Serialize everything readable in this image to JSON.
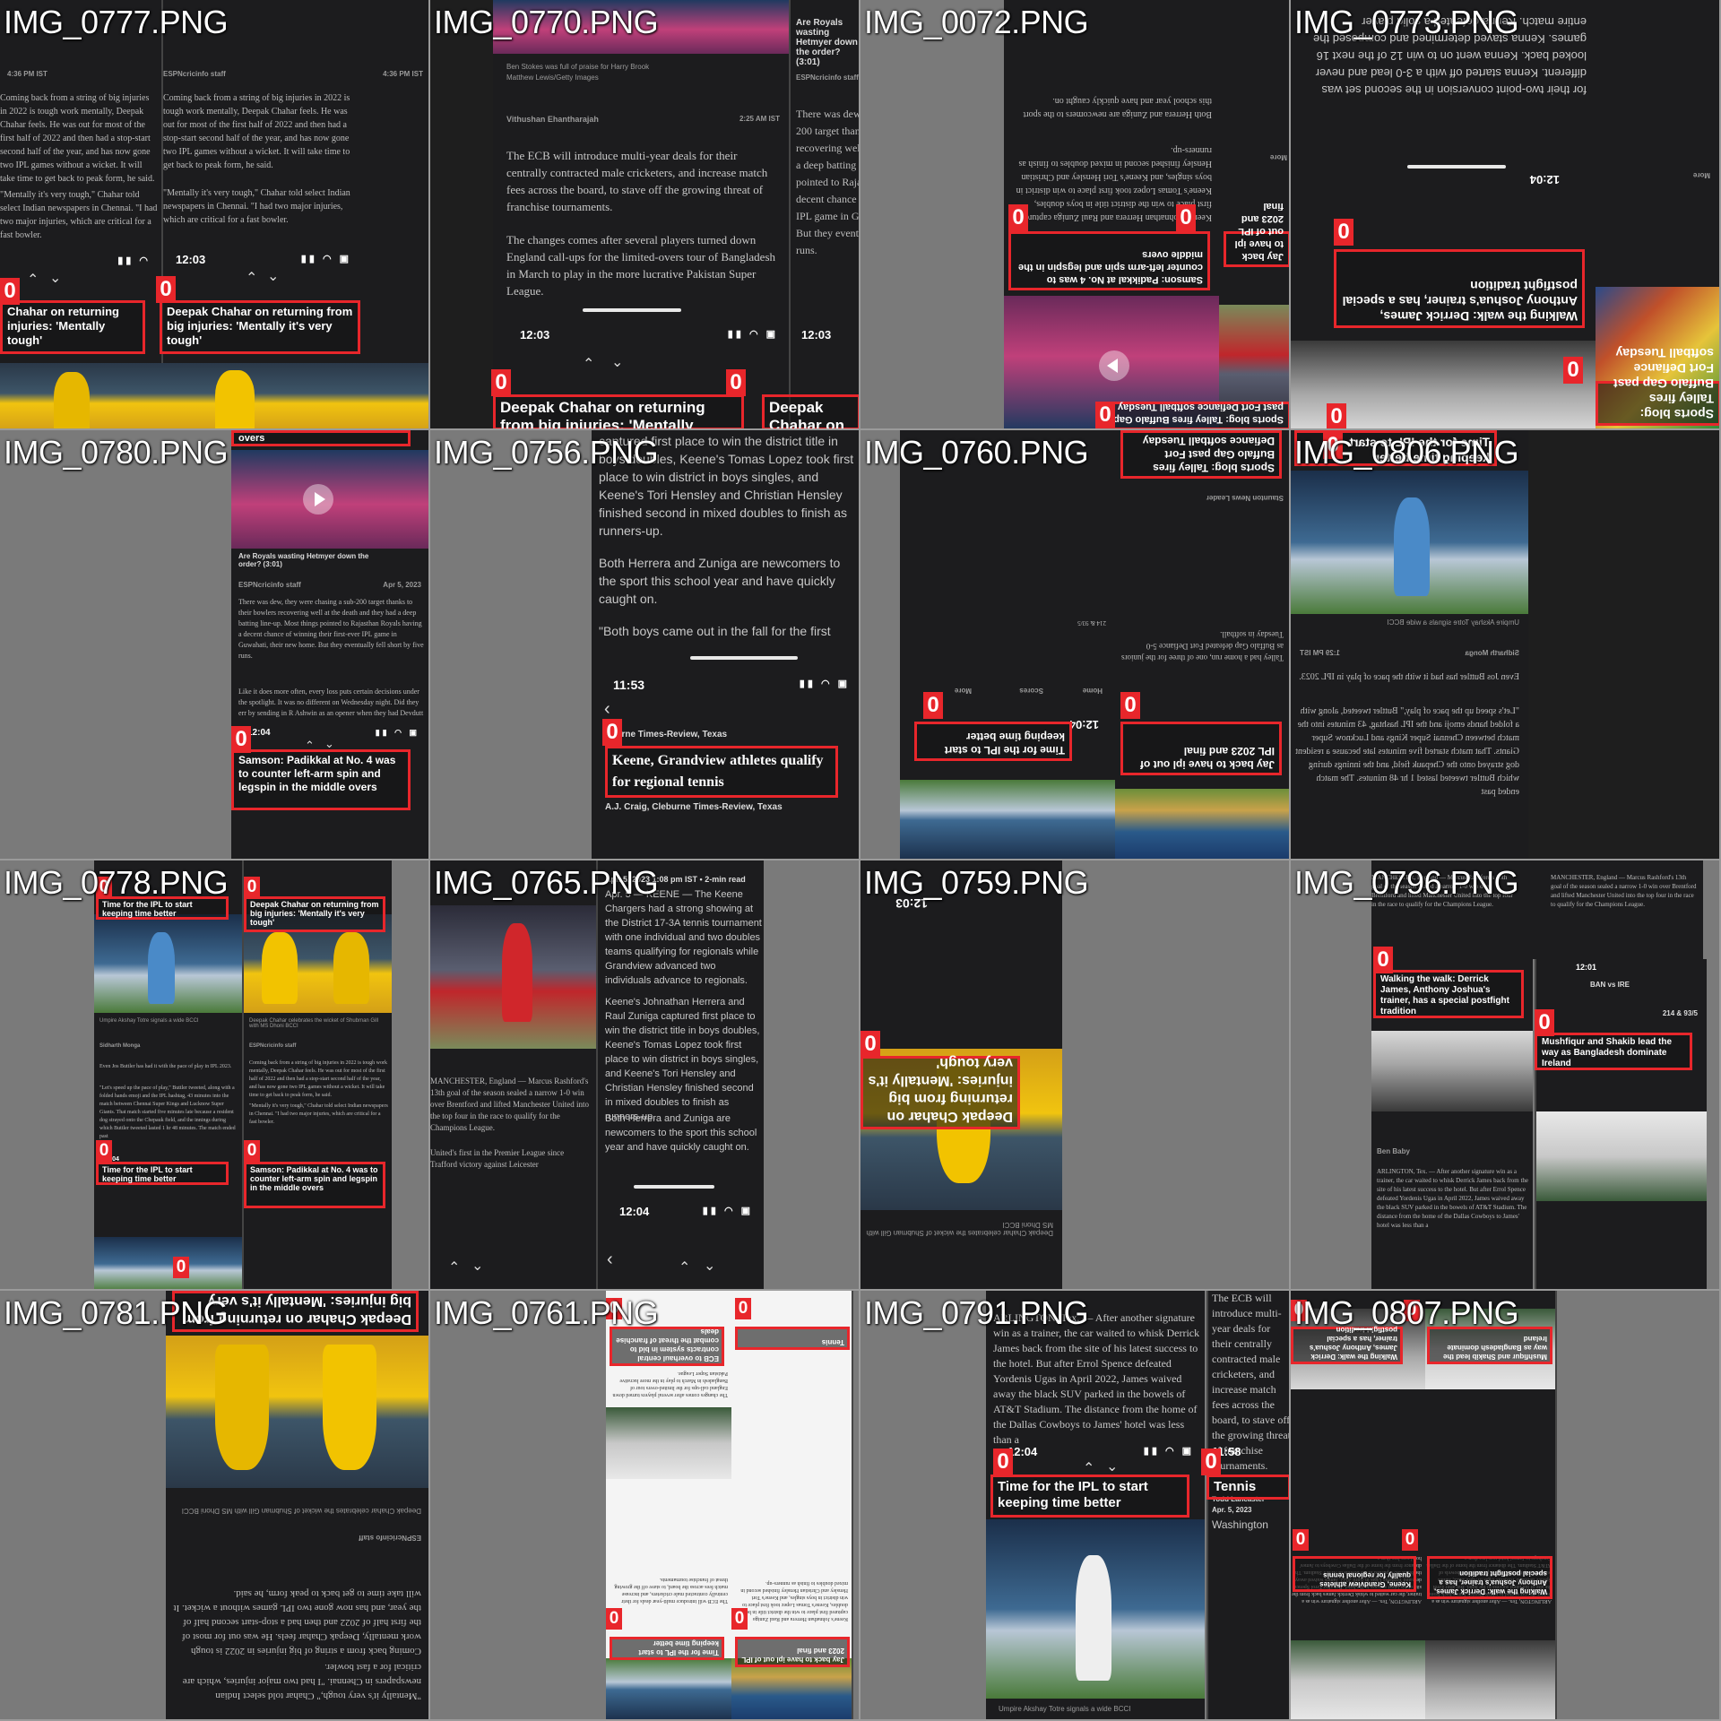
{
  "tiles": [
    {
      "label": "IMG_0777.PNG"
    },
    {
      "label": "IMG_0770.PNG"
    },
    {
      "label": "IMG_0072.PNG"
    },
    {
      "label": "IMG_0773.PNG"
    },
    {
      "label": "IMG_0780.PNG"
    },
    {
      "label": "IMG_0756.PNG"
    },
    {
      "label": "IMG_0760.PNG"
    },
    {
      "label": "IMG_0806.PNG"
    },
    {
      "label": "IMG_0778.PNG"
    },
    {
      "label": "IMG_0765.PNG"
    },
    {
      "label": "IMG_0759.PNG"
    },
    {
      "label": "IMG_0796.PNG"
    },
    {
      "label": "IMG_0781.PNG"
    },
    {
      "label": "IMG_0761.PNG"
    },
    {
      "label": "IMG_0791.PNG"
    },
    {
      "label": "IMG_0807.PNG"
    }
  ],
  "badge": "0",
  "times": {
    "t1203": "12:03",
    "t1204": "12:04",
    "t1153": "11:53",
    "t1158": "11:58",
    "t1201": "12:01"
  },
  "battery": "82",
  "headlines": {
    "chahar_short": "Chahar on returning injuries: 'Mentally tough'",
    "chahar": "Deepak Chahar on returning from big injuries: 'Mentally it's very tough'",
    "chahar_cut": "Deepak Chahar on returning from big injuries: 'Mentally",
    "samson": "Samson: Padikkal at No. 4 was to counter left-arm spin and legspin in the middle overs",
    "derrick": "Walking the walk: Derrick James, Anthony Joshua's trainer, has a special postfight tradition",
    "ipl_time": "Time for the IPL to start keeping time better",
    "keene": "Keene, Grandview athletes qualify for regional tennis",
    "mushfiqur": "Mushfiqur and Shakib lead the way as Bangladesh dominate Ireland",
    "ecb": "ECB to overhaul central contracts system in bid to combat the threat of franchise deals",
    "softball": "Sports blog: Talley fires Buffalo Gap past Fort Defiance softball Tuesday",
    "back_ipl": "Jay back to have ipl out of IPL 2023 and final",
    "royals_q": "Are Royals wasting Hetmyer down the order? (3:01)",
    "tennis": "Tennis",
    "overs": "overs"
  },
  "bylines": {
    "stokes": "Ben Stokes was full of praise for Harry Brook",
    "getty": "Matthew Lewis/Getty Images",
    "vithushan": "Vithushan Ehantharajah",
    "espn": "ESPNcricinfo staff",
    "newsleader": "Staunton News Leader",
    "dsunday": "Sidharth Monga",
    "umpire_cap": "Umpire Akshay Totre signals a wide BCCI",
    "chahar_cap": "Deepak Chahar celebrates the wicket of Shubman Gill with MS Dhoni BCCI",
    "times_review": "Bourne Times-Review, Texas",
    "keene_byline": "A.J. Craig, Cleburne Times-Review, Texas",
    "keene_date": "Apr. 5, 2023 1:08 pm IST • 2-min read",
    "todd": "Todd Lancaster",
    "todd_date": "Apr. 5, 2023",
    "washington": "Washington",
    "ben_baby": "Ben Baby"
  },
  "times_meta": {
    "t1": "4:36 PM IST",
    "t2": "2:25 AM IST",
    "t3": "Apr 5, 2023",
    "t4": "1:29 PM IST"
  },
  "articles": {
    "chahar_p1": "Coming back from a string of big injuries in 2022 is tough work mentally, Deepak Chahar feels. He was out for most of the first half of 2022 and then had a stop-start second half of the year, and has now gone two IPL games without a wicket. It will take time to get back to peak form, he said.",
    "chahar_p2": "\"Mentally it's very tough,\" Chahar told select Indian newspapers in Chennai. \"I had two major injuries, which are critical for a fast bowler.",
    "ecb_p1": "The ECB will introduce multi-year deals for their centrally contracted male cricketers, and increase match fees across the board, to stave off the growing threat of franchise tournaments.",
    "ecb_p2": "The changes comes after several players turned down England call-ups for the limited-overs tour of Bangladesh in March to play in the more lucrative Pakistan Super League.",
    "royals_p1": "There was dew, they were chasing a sub-200 target thanks to their bowlers recovering well at the death and they had a deep batting line-up. Most things pointed to Rajasthan Royals having a decent chance of winning their first-ever IPL game in Guwahati, their new home. But they eventually fell short by five runs.",
    "royals_p2": "Like it does more often, every loss puts certain decisions under the spotlight. It was no different on Wednesday night. Did they err by sending in R Ashwin as an opener when they had Devdutt",
    "keene_p1": "captured first place to win the district title in boys doubles, Keene's Tomas Lopez took first place to win district in boys singles, and Keene's Tori Hensley and Christian Hensley finished second in mixed doubles to finish as runners-up.",
    "keene_p2": "Both Herrera and Zuniga are newcomers to the sport this school year and have quickly caught on.",
    "keene_p3": "\"Both boys came out in the fall for the first",
    "keene_lead": "Apr. 5 — KEENE — The Keene Chargers had a strong showing at the District 17-3A tennis tournament with one individual and two doubles teams qualifying for regionals while Grandview advanced two individuals advance to regionals.",
    "keene_p4": "Keene's Johnathan Herrera and Raul Zuniga captured first place to win the district title in boys doubles, Keene's Tomas Lopez took first place to win district in boys singles, and Keene's Tori Hensley and Christian Hensley finished second in mixed doubles to finish as runners-up.",
    "umpire_p1": "Even Jos Buttler has had it with the pace of play in IPL 2023.",
    "umpire_p2": "\"Let's speed up the pace of play,\" Buttler tweeted, along with a folded hands emoji and the IPL hashtag, 43 minutes into the match between Chennai Super Kings and Lucknow Super Giants. That match started five minutes late because a resident dog strayed onto the Chepauk field, and the innings during which Buttler tweeted lasted 1 hr 48 minutes. The match ended past",
    "derrick_p1": "ARLINGTON, Tex. — After another signature win as a trainer, the car waited to whisk Derrick James back from the site of his latest success to the hotel. But after Errol Spence defeated Yordenis Ugas in April 2022, James waived away the black SUV parked in the bowels of AT&T Stadium. The distance from the home of the Dallas Cowboys to James' hotel was less than a",
    "rashford_p1": "MANCHESTER, England — Marcus Rashford's 13th goal of the season sealed a narrow 1-0 win over Brentford and lifted Manchester United into the top four in the race to qualify for the Champions League.",
    "rashford_p2": "United's first in the Premier League since Trafford victory against Leicester",
    "derrick_flip": "for their two-point conversion in the second set was different. Kenna started off with a 3-0 lead and never looked back. Kenna went on to win 12 of the next 16 games. Kenna stayed determined and composed the entire match. Kenna defeated a solid player",
    "softball_p1": "Talley had a home run, one of three for the juniors as Buffalo Gap defeated Fort Defiance 5-0 Tuesday in softball."
  },
  "ui": {
    "more": "More",
    "home": "Home",
    "scores": "Scores",
    "ban_ire": "BAN vs IRE",
    "score": "214 & 93/5"
  }
}
